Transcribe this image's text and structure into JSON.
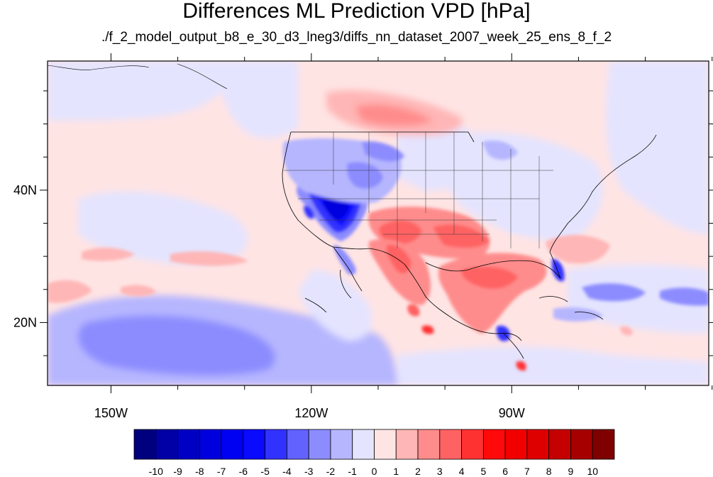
{
  "title": "Differences ML Prediction VPD [hPa]",
  "subtitle": "./f_2_model_output_b8_e_30_d3_lneg3/diffs_nn_dataset_2007_week_25_ens_8_f_2",
  "map": {
    "lon_ticks": [
      {
        "lon": -150,
        "label": "150W"
      },
      {
        "lon": -120,
        "label": "120W"
      },
      {
        "lon": -90,
        "label": "90W"
      }
    ],
    "lat_ticks": [
      {
        "lat": 40,
        "label": "40N"
      },
      {
        "lat": 20,
        "label": "20N"
      }
    ],
    "extent": {
      "lon": [
        -159.5,
        -60.5
      ],
      "lat": [
        10.5,
        59.5
      ]
    }
  },
  "colorbar": {
    "labels": [
      "-10",
      "-9",
      "-8",
      "-7",
      "-6",
      "-5",
      "-4",
      "-3",
      "-2",
      "-1",
      "0",
      "1",
      "2",
      "3",
      "4",
      "5",
      "6",
      "7",
      "8",
      "9",
      "10"
    ],
    "colors": [
      "#00007e",
      "#0000a6",
      "#0000c5",
      "#0000de",
      "#0000f2",
      "#0a0aff",
      "#3232ff",
      "#6262ff",
      "#8c8cff",
      "#b6b6ff",
      "#e4e4ff",
      "#ffe4e4",
      "#ffb6b6",
      "#ff8c8c",
      "#ff6262",
      "#ff3232",
      "#ff0a0a",
      "#f20000",
      "#de0000",
      "#c50000",
      "#a60000",
      "#7e0000"
    ]
  }
}
